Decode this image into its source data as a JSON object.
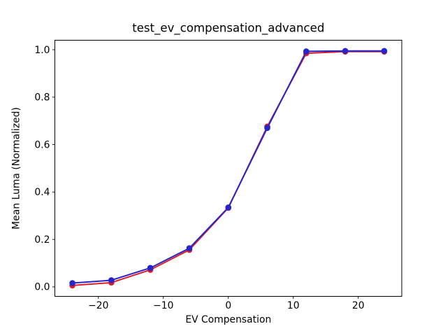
{
  "chart_data": {
    "type": "line",
    "title": "test_ev_compensation_advanced",
    "xlabel": "EV Compensation",
    "ylabel": "Mean Luma (Normalized)",
    "x": [
      -24,
      -18,
      -12,
      -6,
      0,
      6,
      12,
      18,
      24
    ],
    "series": [
      {
        "name": "red-series",
        "color": "#dc1f27",
        "marker": "circle",
        "values": [
          0.006,
          0.018,
          0.072,
          0.156,
          0.333,
          0.676,
          0.985,
          0.992,
          0.992
        ]
      },
      {
        "name": "blue-series",
        "color": "#2525cd",
        "marker": "circle",
        "values": [
          0.016,
          0.028,
          0.08,
          0.163,
          0.335,
          0.67,
          0.993,
          0.995,
          0.995
        ]
      }
    ],
    "xlim": [
      -26.7,
      26.7
    ],
    "ylim": [
      -0.04,
      1.04
    ],
    "xticks": [
      -20,
      -10,
      0,
      10,
      20
    ],
    "xtick_labels": [
      "−20",
      "−10",
      "0",
      "10",
      "20"
    ],
    "yticks": [
      0.0,
      0.2,
      0.4,
      0.6,
      0.8,
      1.0
    ],
    "ytick_labels": [
      "0.0",
      "0.2",
      "0.4",
      "0.6",
      "0.8",
      "1.0"
    ],
    "grid": false,
    "legend": null,
    "colors": {
      "background": "#ffffff",
      "spine": "#000000",
      "text": "#000000"
    }
  }
}
